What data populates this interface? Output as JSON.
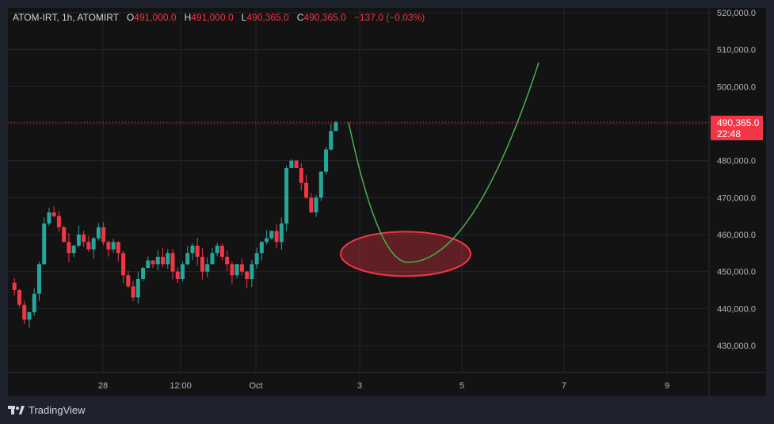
{
  "header": {
    "symbol": "ATOM-IRT, 1h, ATOMIRT",
    "open_label": "O",
    "open": "491,000.0",
    "high_label": "H",
    "high": "491,000.0",
    "low_label": "L",
    "low": "490,365.0",
    "close_label": "C",
    "close": "490,365.0",
    "change": "−137.0 (−0.03%)"
  },
  "last_price": {
    "value": "490,365.0",
    "countdown": "22:48"
  },
  "branding": {
    "name": "TradingView",
    "logo_icon": "tradingview-logo-icon"
  },
  "colors": {
    "up": "#26a69a",
    "down": "#f23645",
    "projection": "#4caf50",
    "ellipse": "#f23645",
    "background": "#131313"
  },
  "chart_data": {
    "type": "candlestick",
    "y_ticks": [
      "520,000.0",
      "510,000.0",
      "500,000.0",
      "490,000.0",
      "480,000.0",
      "470,000.0",
      "460,000.0",
      "450,000.0",
      "440,000.0",
      "430,000.0"
    ],
    "x_ticks": [
      "28",
      "12:00",
      "Oct",
      "3",
      "5",
      "7",
      "9"
    ],
    "ylim": [
      422000,
      522000
    ],
    "grid": true,
    "price_series": [
      447000,
      445000,
      441000,
      437000,
      439000,
      444000,
      452000,
      463000,
      466000,
      465000,
      462000,
      458000,
      455000,
      457000,
      460000,
      458000,
      456000,
      459000,
      462000,
      458000,
      456000,
      458000,
      455000,
      449000,
      446000,
      443000,
      448000,
      451000,
      453000,
      452000,
      454000,
      452000,
      455000,
      450000,
      448000,
      452000,
      455000,
      457000,
      454000,
      450000,
      452000,
      455000,
      457000,
      454000,
      452000,
      449000,
      452000,
      450000,
      448000,
      452000,
      455000,
      458000,
      459000,
      461000,
      458000,
      463000,
      478000,
      480000,
      478000,
      474000,
      470000,
      466000,
      470000,
      477000,
      483000,
      488000,
      490365
    ],
    "current_price_line": 490365,
    "projection": {
      "type": "parabola",
      "start_x_label": "2 Oct",
      "min_price": 452500,
      "end_price": 506500
    },
    "highlight_ellipse": {
      "center_price": 455000
    }
  }
}
